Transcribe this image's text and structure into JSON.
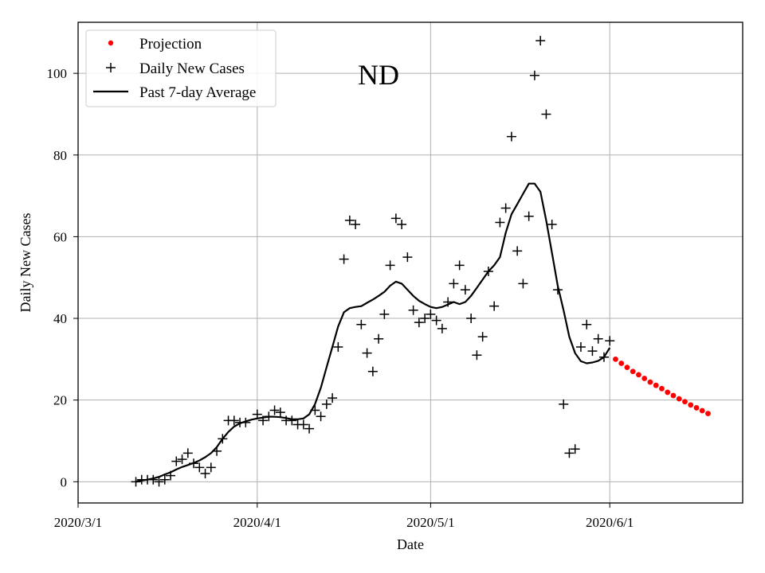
{
  "chart_data": {
    "type": "line",
    "title": "ND",
    "xlabel": "Date",
    "ylabel": "Daily New Cases",
    "x_ticks": [
      {
        "day": 0,
        "label": "2020/3/1"
      },
      {
        "day": 31,
        "label": "2020/4/1"
      },
      {
        "day": 61,
        "label": "2020/5/1"
      },
      {
        "day": 92,
        "label": "2020/6/1"
      }
    ],
    "y_ticks": [
      0,
      20,
      40,
      60,
      80,
      100
    ],
    "xlim": [
      0,
      115
    ],
    "ylim": [
      -5.2,
      112.5
    ],
    "grid": true,
    "legend_position": "top-left",
    "legend": [
      {
        "label": "Projection",
        "marker": "dot",
        "color": "#ff0000"
      },
      {
        "label": "Daily New Cases",
        "marker": "plus",
        "color": "#000000"
      },
      {
        "label": "Past 7-day Average",
        "marker": "line",
        "color": "#000000"
      }
    ],
    "series": [
      {
        "name": "Daily New Cases",
        "style": "plus",
        "color": "#000000",
        "points": [
          [
            10,
            0
          ],
          [
            11,
            0.5
          ],
          [
            12,
            0.5
          ],
          [
            13,
            0.5
          ],
          [
            14,
            0
          ],
          [
            15,
            0.5
          ],
          [
            16,
            1.5
          ],
          [
            17,
            5
          ],
          [
            18,
            5.5
          ],
          [
            19,
            7
          ],
          [
            20,
            4.5
          ],
          [
            21,
            3.5
          ],
          [
            22,
            2
          ],
          [
            23,
            3.5
          ],
          [
            24,
            7.5
          ],
          [
            25,
            10.5
          ],
          [
            26,
            15
          ],
          [
            27,
            15
          ],
          [
            28,
            14.5
          ],
          [
            29,
            14.5
          ],
          [
            31,
            16.5
          ],
          [
            32,
            15
          ],
          [
            33,
            16
          ],
          [
            34,
            17.5
          ],
          [
            35,
            17
          ],
          [
            36,
            15
          ],
          [
            37,
            15
          ],
          [
            38,
            14
          ],
          [
            39,
            14
          ],
          [
            40,
            13
          ],
          [
            41,
            17.5
          ],
          [
            42,
            16
          ],
          [
            43,
            19
          ],
          [
            44,
            20.5
          ],
          [
            45,
            33
          ],
          [
            46,
            54.5
          ],
          [
            47,
            64
          ],
          [
            48,
            63
          ],
          [
            49,
            38.5
          ],
          [
            50,
            31.5
          ],
          [
            51,
            27
          ],
          [
            52,
            35
          ],
          [
            53,
            41
          ],
          [
            54,
            53
          ],
          [
            55,
            64.5
          ],
          [
            56,
            63
          ],
          [
            57,
            55
          ],
          [
            58,
            42
          ],
          [
            59,
            39
          ],
          [
            60,
            40
          ],
          [
            61,
            41
          ],
          [
            62,
            39.5
          ],
          [
            63,
            37.5
          ],
          [
            64,
            44
          ],
          [
            65,
            48.5
          ],
          [
            66,
            53
          ],
          [
            67,
            47
          ],
          [
            68,
            40
          ],
          [
            69,
            31
          ],
          [
            70,
            35.5
          ],
          [
            71,
            51.5
          ],
          [
            72,
            43
          ],
          [
            73,
            63.5
          ],
          [
            74,
            67
          ],
          [
            75,
            84.5
          ],
          [
            76,
            56.5
          ],
          [
            77,
            48.5
          ],
          [
            78,
            65
          ],
          [
            79,
            99.5
          ],
          [
            80,
            108
          ],
          [
            81,
            90
          ],
          [
            82,
            63
          ],
          [
            83,
            47
          ],
          [
            84,
            19
          ],
          [
            85,
            7
          ],
          [
            86,
            8
          ],
          [
            87,
            33
          ],
          [
            88,
            38.5
          ],
          [
            89,
            32
          ],
          [
            90,
            35
          ],
          [
            91,
            30.5
          ],
          [
            92,
            34.5
          ]
        ]
      },
      {
        "name": "Past 7-day Average",
        "style": "line",
        "color": "#000000",
        "points": [
          [
            10,
            0
          ],
          [
            11,
            0.3
          ],
          [
            12,
            0.5
          ],
          [
            13,
            0.8
          ],
          [
            14,
            1.2
          ],
          [
            15,
            1.8
          ],
          [
            16,
            2.3
          ],
          [
            17,
            3
          ],
          [
            18,
            3.6
          ],
          [
            19,
            4.1
          ],
          [
            20,
            4.6
          ],
          [
            21,
            5.2
          ],
          [
            22,
            6
          ],
          [
            23,
            7
          ],
          [
            24,
            8.5
          ],
          [
            25,
            10.5
          ],
          [
            26,
            12.2
          ],
          [
            27,
            13.5
          ],
          [
            28,
            14.3
          ],
          [
            29,
            14.8
          ],
          [
            30,
            15.2
          ],
          [
            31,
            15.5
          ],
          [
            32,
            15.7
          ],
          [
            33,
            15.9
          ],
          [
            34,
            15.9
          ],
          [
            35,
            15.8
          ],
          [
            36,
            15.6
          ],
          [
            37,
            15.3
          ],
          [
            38,
            15.3
          ],
          [
            39,
            15.5
          ],
          [
            40,
            16.5
          ],
          [
            41,
            19
          ],
          [
            42,
            23
          ],
          [
            43,
            28
          ],
          [
            44,
            33
          ],
          [
            45,
            38
          ],
          [
            46,
            41.5
          ],
          [
            47,
            42.5
          ],
          [
            48,
            42.8
          ],
          [
            49,
            43
          ],
          [
            50,
            43.8
          ],
          [
            51,
            44.6
          ],
          [
            52,
            45.5
          ],
          [
            53,
            46.5
          ],
          [
            54,
            48
          ],
          [
            55,
            49
          ],
          [
            56,
            48.5
          ],
          [
            57,
            47
          ],
          [
            58,
            45.5
          ],
          [
            59,
            44.3
          ],
          [
            60,
            43.5
          ],
          [
            61,
            42.8
          ],
          [
            62,
            42.5
          ],
          [
            63,
            42.8
          ],
          [
            64,
            43.4
          ],
          [
            65,
            44
          ],
          [
            66,
            43.5
          ],
          [
            67,
            44
          ],
          [
            68,
            45.5
          ],
          [
            69,
            47.5
          ],
          [
            70,
            49.5
          ],
          [
            71,
            51.5
          ],
          [
            72,
            53
          ],
          [
            73,
            55
          ],
          [
            74,
            61
          ],
          [
            75,
            65.5
          ],
          [
            76,
            68
          ],
          [
            77,
            70.5
          ],
          [
            78,
            73
          ],
          [
            79,
            73
          ],
          [
            80,
            71
          ],
          [
            81,
            64
          ],
          [
            82,
            56
          ],
          [
            83,
            48
          ],
          [
            84,
            42
          ],
          [
            85,
            35.5
          ],
          [
            86,
            31.5
          ],
          [
            87,
            29.5
          ],
          [
            88,
            29
          ],
          [
            89,
            29.2
          ],
          [
            90,
            29.6
          ],
          [
            91,
            30.5
          ],
          [
            92,
            32.8
          ]
        ]
      },
      {
        "name": "Projection",
        "style": "dot",
        "color": "#ff0000",
        "points": [
          [
            93,
            30
          ],
          [
            94,
            29
          ],
          [
            95,
            28
          ],
          [
            96,
            27
          ],
          [
            97,
            26.2
          ],
          [
            98,
            25.3
          ],
          [
            99,
            24.4
          ],
          [
            100,
            23.6
          ],
          [
            101,
            22.8
          ],
          [
            102,
            21.9
          ],
          [
            103,
            21.1
          ],
          [
            104,
            20.3
          ],
          [
            105,
            19.6
          ],
          [
            106,
            18.8
          ],
          [
            107,
            18.1
          ],
          [
            108,
            17.4
          ],
          [
            109,
            16.7
          ]
        ]
      }
    ]
  }
}
